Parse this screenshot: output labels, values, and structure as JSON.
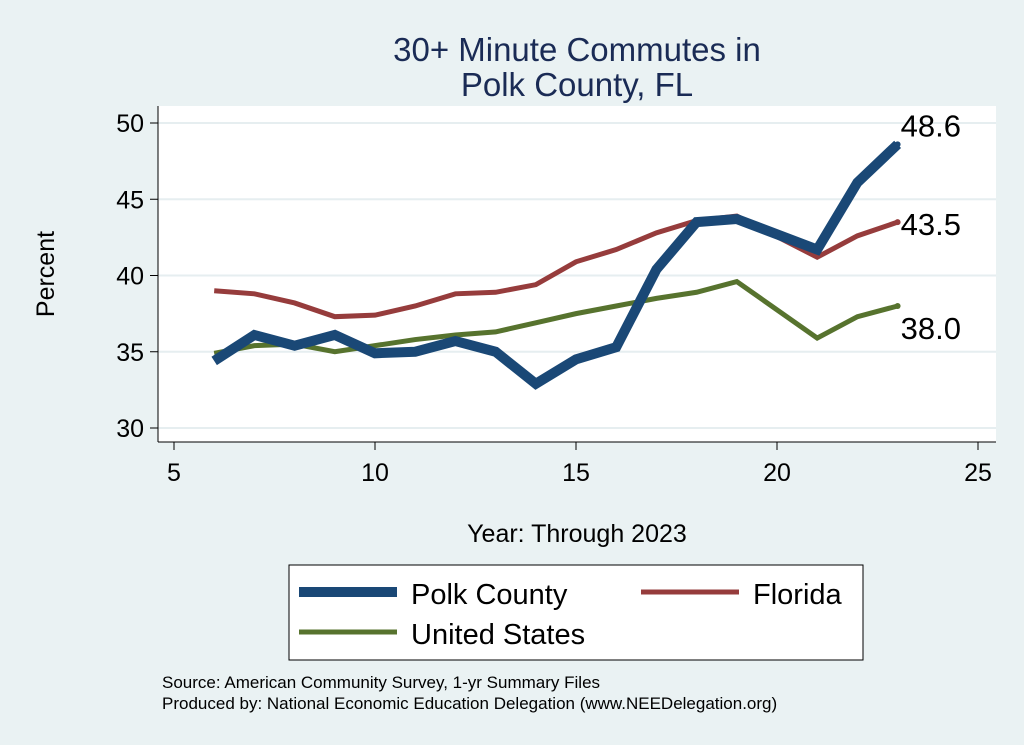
{
  "chart_data": {
    "type": "line",
    "title_lines": [
      "30+ Minute Commutes in",
      "Polk County, FL"
    ],
    "xlabel": "Year: Through 2023",
    "ylabel": "Percent",
    "xlim": [
      5,
      25
    ],
    "ylim": [
      30,
      50
    ],
    "xticks": [
      "5",
      "10",
      "15",
      "20",
      "25"
    ],
    "yticks": [
      "30",
      "35",
      "40",
      "45",
      "50"
    ],
    "grid": true,
    "legend_position": "bottom",
    "x": [
      6,
      7,
      8,
      9,
      10,
      11,
      12,
      13,
      14,
      15,
      16,
      17,
      18,
      19,
      21,
      22,
      23
    ],
    "series": [
      {
        "name": "Polk County",
        "color": "#1a4876",
        "values": [
          34.4,
          36.1,
          35.4,
          36.1,
          34.9,
          35.0,
          35.7,
          35.0,
          32.9,
          34.5,
          35.3,
          40.4,
          43.5,
          43.7,
          41.7,
          46.1,
          48.6
        ],
        "end_label": "48.6"
      },
      {
        "name": "Florida",
        "color": "#963c3c",
        "values": [
          39.0,
          38.8,
          38.2,
          37.3,
          37.4,
          38.0,
          38.8,
          38.9,
          39.4,
          40.9,
          41.7,
          42.8,
          43.6,
          43.9,
          41.2,
          42.6,
          43.5
        ],
        "end_label": "43.5"
      },
      {
        "name": "United States",
        "color": "#57732e",
        "values": [
          34.9,
          35.4,
          35.5,
          35.0,
          35.4,
          35.8,
          36.1,
          36.3,
          36.9,
          37.5,
          38.0,
          38.5,
          38.9,
          39.6,
          35.9,
          37.3,
          38.0
        ],
        "end_label": "38.0"
      }
    ]
  },
  "source_lines": [
    "Source: American Community Survey, 1-yr Summary Files",
    "Produced by: National Economic Education Delegation (www.NEEDelegation.org)"
  ]
}
